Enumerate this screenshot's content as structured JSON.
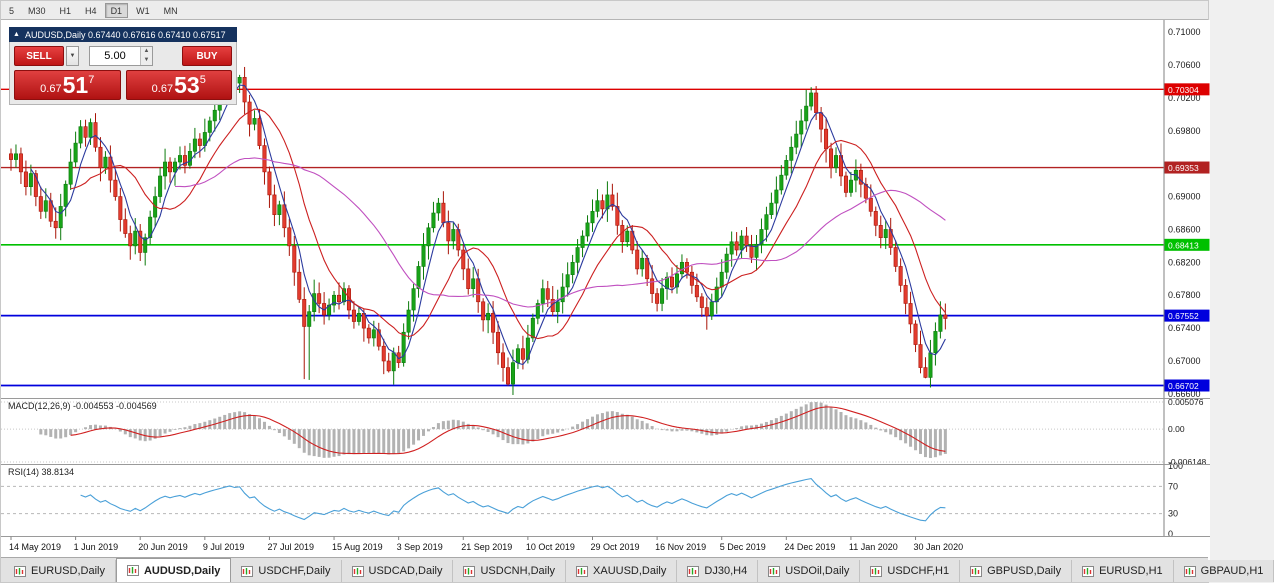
{
  "toolbar": {
    "timeframes": [
      "5",
      "M30",
      "H1",
      "H4",
      "D1",
      "W1",
      "MN"
    ],
    "active": "D1"
  },
  "trade_panel": {
    "header": "AUDUSD,Daily  0.67440 0.67616 0.67410 0.67517",
    "sell_label": "SELL",
    "buy_label": "BUY",
    "volume": "5.00",
    "sell_price": {
      "prefix": "0.67",
      "big": "51",
      "pip": "7"
    },
    "buy_price": {
      "prefix": "0.67",
      "big": "53",
      "pip": "5"
    },
    "icons": {
      "collapse": "▲",
      "dropdown": "▼",
      "spin_up": "▲",
      "spin_down": "▼"
    }
  },
  "indicators": {
    "macd_label": "MACD(12,26,9) -0.004553 -0.004569",
    "macd_axis": [
      "0.005076",
      "0.00",
      "-0.006148"
    ],
    "rsi_label": "RSI(14) 38.8134",
    "rsi_axis": [
      "100",
      "70",
      "30",
      "0"
    ]
  },
  "chart_data": {
    "type": "candlestick",
    "symbol": "AUDUSD",
    "timeframe": "Daily",
    "title": "AUDUSD,Daily",
    "ylim": [
      0.6655,
      0.7105
    ],
    "price_ticks": [
      0.71,
      0.706,
      0.702,
      0.698,
      0.69,
      0.686,
      0.682,
      0.678,
      0.674,
      0.67,
      0.666
    ],
    "levels": [
      {
        "price": 0.70304,
        "label": "0.70304",
        "color": "#dd0000",
        "width": 1.4
      },
      {
        "price": 0.69353,
        "label": "0.69353",
        "color": "#b22222",
        "width": 1.4
      },
      {
        "price": 0.68413,
        "label": "0.68413",
        "color": "#00c000",
        "width": 1.6
      },
      {
        "price": 0.67552,
        "label": "0.67552",
        "color": "#0000dd",
        "width": 1.8
      },
      {
        "price": 0.66702,
        "label": "0.66702",
        "color": "#0000dd",
        "width": 1.8
      }
    ],
    "x_tick_labels": [
      "14 May 2019",
      "1 Jun 2019",
      "20 Jun 2019",
      "9 Jul 2019",
      "27 Jul 2019",
      "15 Aug 2019",
      "3 Sep 2019",
      "21 Sep 2019",
      "10 Oct 2019",
      "29 Oct 2019",
      "16 Nov 2019",
      "5 Dec 2019",
      "24 Dec 2019",
      "11 Jan 2020",
      "30 Jan 2020"
    ],
    "x_tick_bar_interval": 13,
    "first_open": 0.6952,
    "closes": [
      0.6945,
      0.6952,
      0.693,
      0.6912,
      0.6928,
      0.69,
      0.6882,
      0.6895,
      0.687,
      0.6862,
      0.6888,
      0.6915,
      0.6942,
      0.6965,
      0.6985,
      0.6972,
      0.699,
      0.696,
      0.6935,
      0.6948,
      0.692,
      0.69,
      0.6872,
      0.6855,
      0.684,
      0.6858,
      0.6832,
      0.685,
      0.6875,
      0.69,
      0.6925,
      0.6942,
      0.693,
      0.6942,
      0.695,
      0.6938,
      0.6955,
      0.697,
      0.6962,
      0.6978,
      0.6992,
      0.7005,
      0.7018,
      0.7032,
      0.7045,
      0.7038,
      0.7045,
      0.7015,
      0.6988,
      0.6995,
      0.6962,
      0.693,
      0.6902,
      0.6878,
      0.689,
      0.6862,
      0.684,
      0.6808,
      0.6775,
      0.6742,
      0.676,
      0.6782,
      0.677,
      0.6756,
      0.6768,
      0.678,
      0.6772,
      0.6788,
      0.6762,
      0.6748,
      0.6758,
      0.674,
      0.6728,
      0.6738,
      0.6718,
      0.67,
      0.6688,
      0.671,
      0.6698,
      0.6735,
      0.6762,
      0.6788,
      0.6815,
      0.684,
      0.6862,
      0.688,
      0.6892,
      0.6868,
      0.6846,
      0.686,
      0.6835,
      0.6812,
      0.6788,
      0.68,
      0.6772,
      0.675,
      0.6758,
      0.6735,
      0.671,
      0.6692,
      0.6672,
      0.6698,
      0.6715,
      0.6702,
      0.6728,
      0.6752,
      0.677,
      0.6788,
      0.6775,
      0.676,
      0.6772,
      0.679,
      0.6805,
      0.682,
      0.6838,
      0.6852,
      0.6868,
      0.6882,
      0.6895,
      0.6885,
      0.6902,
      0.6888,
      0.6865,
      0.6845,
      0.6858,
      0.6835,
      0.6812,
      0.6825,
      0.68,
      0.6782,
      0.677,
      0.6788,
      0.6802,
      0.679,
      0.6806,
      0.682,
      0.6808,
      0.6792,
      0.6778,
      0.6765,
      0.6755,
      0.6772,
      0.679,
      0.6808,
      0.683,
      0.6845,
      0.6835,
      0.6852,
      0.684,
      0.6826,
      0.6842,
      0.686,
      0.6878,
      0.6892,
      0.6908,
      0.6926,
      0.6944,
      0.696,
      0.6976,
      0.6992,
      0.701,
      0.7026,
      0.7002,
      0.6982,
      0.6958,
      0.6935,
      0.695,
      0.6925,
      0.6905,
      0.692,
      0.6932,
      0.6915,
      0.6898,
      0.6882,
      0.6865,
      0.685,
      0.686,
      0.6838,
      0.6815,
      0.6792,
      0.677,
      0.6745,
      0.672,
      0.6692,
      0.668,
      0.671,
      0.6736,
      0.6756,
      0.67517
    ],
    "wick_overrides": {
      "14": {
        "high": 0.6993
      },
      "16": {
        "high": 0.6995
      },
      "44": {
        "high": 0.705
      },
      "46": {
        "high": 0.7048
      },
      "59": {
        "low": 0.6678
      },
      "60": {
        "low": 0.6677
      },
      "76": {
        "low": 0.6686
      },
      "99": {
        "low": 0.6675
      },
      "100": {
        "low": 0.667
      },
      "160": {
        "high": 0.703
      },
      "161": {
        "high": 0.7033
      },
      "183": {
        "low": 0.6685
      },
      "184": {
        "low": 0.6679
      }
    },
    "moving_averages": [
      {
        "period": 5,
        "color": "#2b3a9e"
      },
      {
        "period": 13,
        "color": "#cc2020"
      },
      {
        "period": 34,
        "color": "#c050c0"
      }
    ],
    "colors": {
      "up": "#18a318",
      "up_stroke": "#0b7a0b",
      "down": "#e23b2e",
      "down_stroke": "#a81407"
    },
    "macd": {
      "fast": 12,
      "slow": 26,
      "signal": 9,
      "axis_values": [
        0.005076,
        0,
        -0.006148
      ],
      "current_main": -0.004553,
      "current_signal": -0.004569,
      "histogram_color": "#b2b2b2",
      "signal_color": "#d02020"
    },
    "rsi": {
      "period": 14,
      "levels": [
        70,
        30
      ],
      "current": 38.8134,
      "line_color": "#4aa0d8"
    }
  },
  "tabs": [
    "EURUSD,Daily",
    "AUDUSD,Daily",
    "USDCHF,Daily",
    "USDCAD,Daily",
    "USDCNH,Daily",
    "XAUUSD,Daily",
    "DJ30,H4",
    "USDOil,Daily",
    "USDCHF,H1",
    "GBPUSD,Daily",
    "EURUSD,H1",
    "GBPAUD,H1"
  ],
  "active_tab_index": 1
}
